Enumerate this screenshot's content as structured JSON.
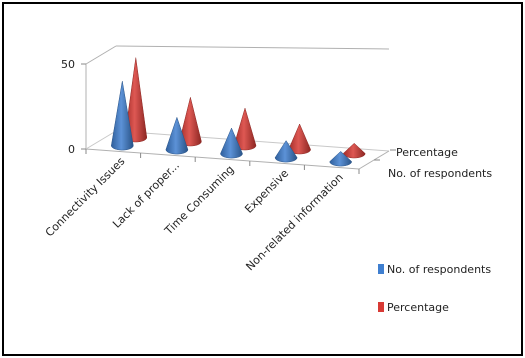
{
  "chart_data": {
    "type": "bar",
    "subtype": "3d-cone",
    "categories": [
      "Connectivity Issues",
      "Lack of proper...",
      "Time Consuming",
      "Expensive",
      "Non-related information"
    ],
    "series": [
      {
        "name": "No. of respondents",
        "values": [
          38,
          19,
          15,
          10,
          6
        ],
        "color": "#3f7fd0"
      },
      {
        "name": "Percentage",
        "values": [
          47,
          26,
          22,
          15,
          6
        ],
        "color": "#d83a35"
      }
    ],
    "y_ticks": [
      "0",
      "50"
    ],
    "ylim": [
      0,
      50
    ],
    "depth_labels": [
      "Percentage",
      "No. of respondents"
    ],
    "legend_position": "bottom-right",
    "grid": false
  }
}
